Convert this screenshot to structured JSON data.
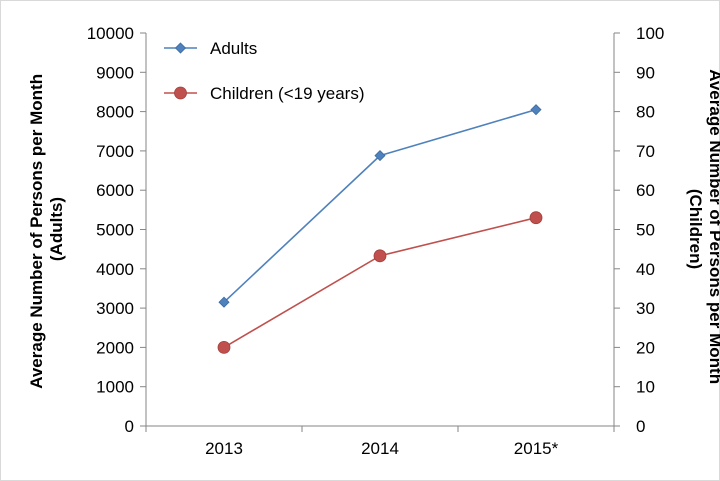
{
  "chart_data": {
    "type": "line",
    "categories": [
      "2013",
      "2014",
      "2015*"
    ],
    "series": [
      {
        "name": "Adults",
        "axis": "left",
        "color": "#4f81bd",
        "marker": "diamond",
        "values": [
          3150,
          6880,
          8050
        ]
      },
      {
        "name": "Children (<19 years)",
        "axis": "right",
        "color": "#c0504d",
        "marker": "circle",
        "values": [
          20,
          43.3,
          53
        ]
      }
    ],
    "y_left": {
      "label_lines": [
        "Average Number of Persons per Month",
        "(Adults)"
      ],
      "ylim": [
        0,
        10000
      ],
      "ticks": [
        "0",
        "1000",
        "2000",
        "3000",
        "4000",
        "5000",
        "6000",
        "7000",
        "8000",
        "9000",
        "10000"
      ]
    },
    "y_right": {
      "label_lines": [
        "Average Number of Persons per Month",
        "(Children)"
      ],
      "ylim": [
        0,
        100
      ],
      "ticks": [
        "0",
        "10",
        "20",
        "30",
        "40",
        "50",
        "60",
        "70",
        "80",
        "90",
        "100"
      ]
    },
    "grid": false,
    "legend_position": "top-left"
  }
}
